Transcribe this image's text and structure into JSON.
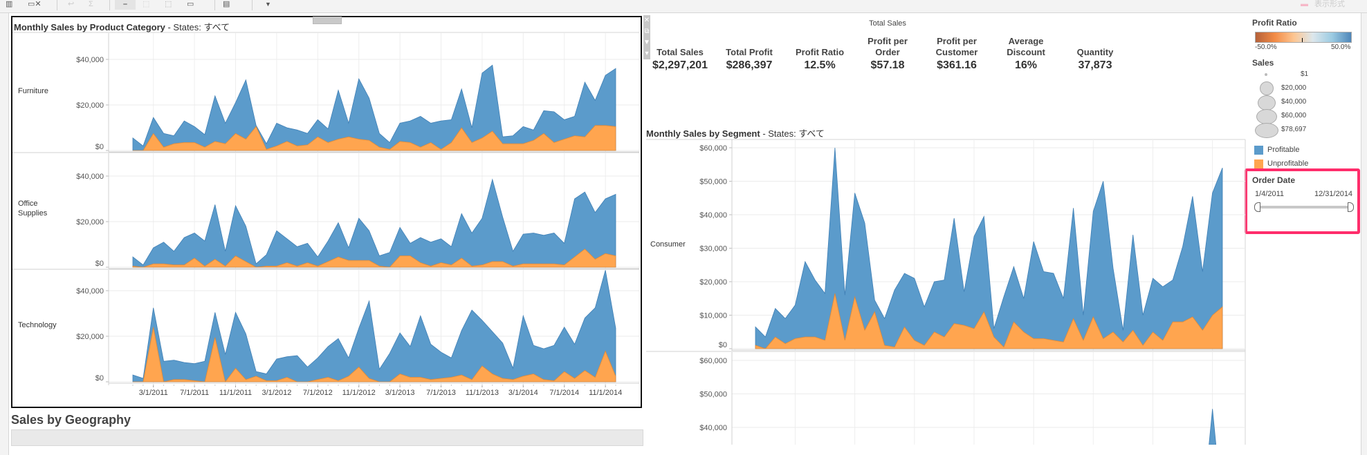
{
  "toolbar": {
    "icons": [
      "chart-icon",
      "clear-sheet-icon",
      "undo-icon",
      "redo-icon",
      "highlight-icon",
      "fit-icon",
      "frame-icon",
      "fix-axes-icon",
      "presentation-icon",
      "dropdown-icon"
    ],
    "right_label": "表示形式"
  },
  "left_panel": {
    "title_bold": "Monthly Sales by Product Category",
    "title_suffix": " - States: すべて",
    "side_icons": [
      "close-icon",
      "popout-icon",
      "filter-icon",
      "menu-icon"
    ]
  },
  "kpis": {
    "header": "Total Sales",
    "items": [
      {
        "label": "Total Sales",
        "value": "$2,297,201"
      },
      {
        "label": "Total Profit",
        "value": "$286,397"
      },
      {
        "label": "Profit Ratio",
        "value": "12.5%"
      },
      {
        "label": "Profit per Order",
        "value": "$57.18"
      },
      {
        "label": "Profit per Customer",
        "value": "$361.16"
      },
      {
        "label": "Average Discount",
        "value": "16%"
      },
      {
        "label": "Quantity",
        "value": "37,873"
      }
    ]
  },
  "segment_panel": {
    "title_bold": "Monthly Sales by Segment",
    "title_suffix": " - States: すべて"
  },
  "geography": {
    "title": "Sales by Geography"
  },
  "legend": {
    "profit_ratio_title": "Profit Ratio",
    "profit_ratio_min": "-50.0%",
    "profit_ratio_max": "50.0%",
    "gradient_colors": [
      "#b5613a",
      "#f28b46",
      "#fdc591",
      "#dce7ec",
      "#9ccbe2",
      "#4e86b9"
    ],
    "sales_title": "Sales",
    "sales_sizes": [
      "$1",
      "$20,000",
      "$40,000",
      "$60,000",
      "$78,697"
    ],
    "items": [
      {
        "label": "Profitable",
        "color": "#5b9bcb"
      },
      {
        "label": "Unprofitable",
        "color": "#ffa54f"
      }
    ]
  },
  "order_date_filter": {
    "title": "Order Date",
    "start": "1/4/2011",
    "end": "12/31/2014",
    "highlight_color": "#ff2d6b"
  },
  "chart_data": [
    {
      "type": "area",
      "category": "Furniture",
      "x_start": "2011-01",
      "x_end": "2014-12",
      "x_interval": "month",
      "x_tick_labels": [
        "3/1/2011",
        "7/1/2011",
        "11/1/2011",
        "3/1/2012",
        "7/1/2012",
        "11/1/2012",
        "3/1/2013",
        "7/1/2013",
        "11/1/2013",
        "3/1/2014",
        "7/1/2014",
        "11/1/2014"
      ],
      "y_tick_labels": [
        "$0",
        "$20,000",
        "$40,000"
      ],
      "ylim": [
        0,
        42000
      ],
      "grid": true,
      "series": [
        {
          "name": "Profitable",
          "values": [
            5500,
            2000,
            14500,
            7500,
            6500,
            13000,
            10500,
            7000,
            24000,
            12000,
            21000,
            31000,
            11000,
            3000,
            12000,
            10000,
            9000,
            7500,
            13500,
            9500,
            26500,
            12000,
            31500,
            23000,
            7500,
            3500,
            12000,
            13000,
            15000,
            12000,
            13000,
            13500,
            27000,
            10000,
            34000,
            37500,
            6000,
            6500,
            10500,
            9000,
            17500,
            17000,
            13500,
            15000,
            30000,
            22000,
            33000,
            36000
          ]
        },
        {
          "name": "Unprofitable",
          "values": [
            0,
            0,
            7500,
            1500,
            3000,
            3500,
            3500,
            1500,
            4000,
            3000,
            7500,
            5000,
            10500,
            500,
            2000,
            4000,
            2000,
            2500,
            6000,
            3500,
            5000,
            6000,
            5000,
            4500,
            1500,
            500,
            4000,
            3500,
            1500,
            3500,
            500,
            3500,
            10000,
            3500,
            5500,
            8500,
            3000,
            3000,
            3000,
            4500,
            7500,
            3500,
            5000,
            6500,
            6000,
            11000,
            11000,
            10500
          ]
        }
      ]
    },
    {
      "type": "area",
      "category": "Office Supplies",
      "y_tick_labels": [
        "$0",
        "$20,000",
        "$40,000"
      ],
      "ylim": [
        0,
        42000
      ],
      "grid": true,
      "series": [
        {
          "name": "Profitable",
          "values": [
            4500,
            1000,
            8500,
            11000,
            7000,
            13000,
            15000,
            11500,
            27500,
            7000,
            27000,
            18000,
            1500,
            5500,
            16000,
            12500,
            9000,
            10500,
            4500,
            11500,
            19500,
            8500,
            21500,
            16000,
            5000,
            6500,
            17500,
            10500,
            13000,
            11000,
            12500,
            9000,
            23500,
            15000,
            21500,
            38500,
            22000,
            7000,
            14500,
            15000,
            14000,
            15000,
            10500,
            30000,
            33000,
            24000,
            30000,
            32000
          ]
        },
        {
          "name": "Unprofitable",
          "values": [
            500,
            0,
            1500,
            1500,
            1000,
            1000,
            4000,
            500,
            3500,
            500,
            5000,
            2500,
            0,
            500,
            500,
            2000,
            500,
            2000,
            500,
            2500,
            4500,
            3000,
            3000,
            3000,
            500,
            0,
            5000,
            5000,
            2000,
            500,
            2000,
            1000,
            4000,
            500,
            1000,
            2500,
            2500,
            500,
            1500,
            1500,
            1500,
            1500,
            1000,
            4500,
            8000,
            3500,
            6000,
            5000
          ]
        }
      ]
    },
    {
      "type": "area",
      "category": "Technology",
      "y_tick_labels": [
        "$0",
        "$20,000",
        "$40,000"
      ],
      "ylim": [
        0,
        42000
      ],
      "grid": true,
      "series": [
        {
          "name": "Profitable",
          "values": [
            3000,
            1500,
            32500,
            9000,
            9500,
            8500,
            8000,
            9000,
            30500,
            12000,
            30500,
            21000,
            4500,
            3500,
            10000,
            11000,
            11500,
            6500,
            10500,
            15500,
            19000,
            10500,
            23500,
            35500,
            5500,
            12500,
            21500,
            15500,
            29000,
            16500,
            13000,
            10500,
            22500,
            31500,
            27000,
            22000,
            17000,
            6000,
            29000,
            16000,
            14500,
            16000,
            24000,
            16500,
            28000,
            32500,
            49000,
            23500
          ]
        },
        {
          "name": "Unprofitable",
          "values": [
            0,
            0,
            24000,
            0,
            1000,
            1000,
            500,
            0,
            19500,
            0,
            6000,
            1000,
            2500,
            500,
            500,
            2000,
            0,
            0,
            1000,
            2000,
            500,
            2500,
            6500,
            1500,
            0,
            0,
            3500,
            2000,
            2000,
            1000,
            1500,
            2000,
            3000,
            1000,
            7000,
            3500,
            1500,
            1000,
            2500,
            3500,
            1000,
            500,
            4500,
            1500,
            5000,
            2000,
            13500,
            2500
          ]
        }
      ]
    },
    {
      "type": "area",
      "category": "Consumer",
      "y_tick_labels": [
        "$0",
        "$10,000",
        "$20,000",
        "$30,000",
        "$40,000",
        "$50,000",
        "$60,000"
      ],
      "ylim": [
        0,
        60000
      ],
      "grid": true,
      "series": [
        {
          "name": "Profitable",
          "values": [
            6500,
            3500,
            12000,
            9000,
            13000,
            26000,
            20500,
            16500,
            60000,
            16000,
            46500,
            37500,
            14500,
            9000,
            17500,
            22500,
            21000,
            12500,
            20000,
            20500,
            39000,
            17000,
            33500,
            39500,
            6000,
            15500,
            24500,
            15000,
            32000,
            23000,
            22500,
            15000,
            42000,
            10000,
            41000,
            50000,
            24000,
            5500,
            34000,
            10000,
            21000,
            18500,
            20500,
            30500,
            45500,
            23000,
            46500,
            54000
          ]
        },
        {
          "name": "Unprofitable",
          "values": [
            1000,
            0,
            3500,
            1500,
            3000,
            3500,
            3500,
            2500,
            16500,
            2500,
            15500,
            5500,
            11000,
            1000,
            500,
            6500,
            2500,
            1000,
            5000,
            3500,
            7500,
            7000,
            6000,
            11000,
            3500,
            500,
            8000,
            5000,
            3000,
            3000,
            2500,
            2000,
            9000,
            2500,
            9500,
            3000,
            5000,
            2000,
            5500,
            1000,
            5000,
            2500,
            8000,
            8000,
            9500,
            5500,
            10000,
            12500
          ]
        }
      ]
    },
    {
      "type": "area",
      "category": "",
      "y_tick_labels": [
        "$40,000",
        "$50,000",
        "$60,000"
      ],
      "grid": true,
      "visible_peak": {
        "x": "2014-11",
        "value": 45500
      }
    }
  ]
}
